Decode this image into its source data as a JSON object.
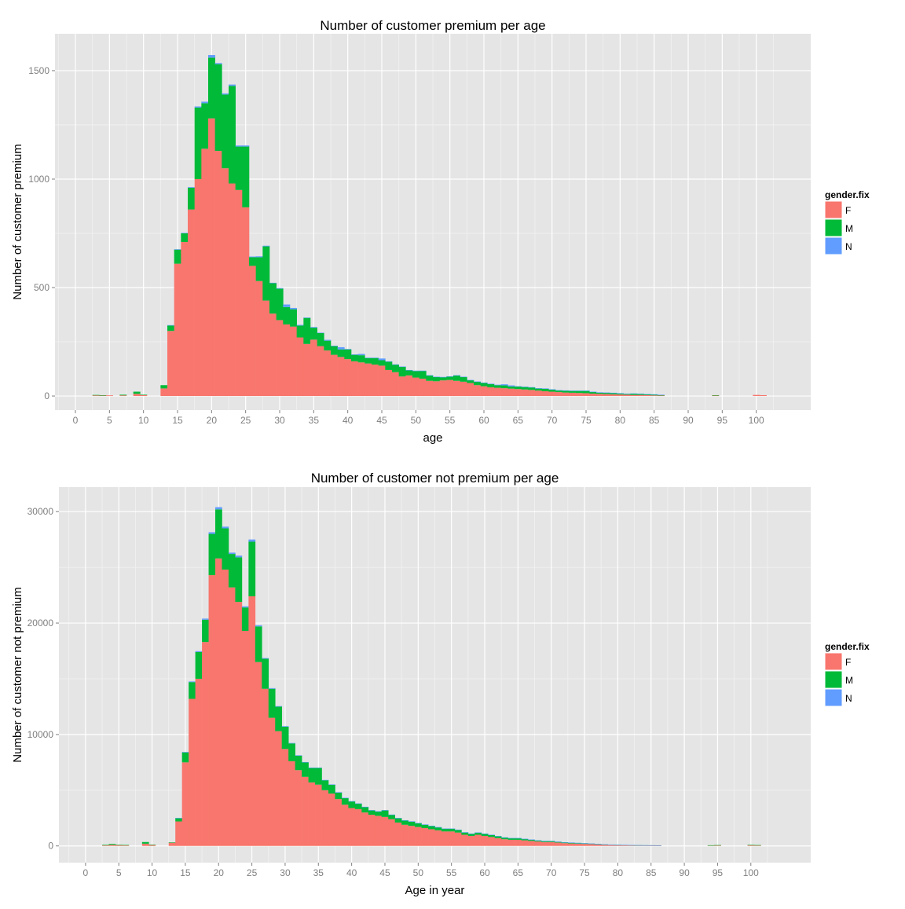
{
  "chart_data": [
    {
      "type": "bar",
      "stacked": true,
      "title": "Number of customer premium per age",
      "xlabel": "age",
      "ylabel": "Number of customer premium",
      "xlim": [
        -3,
        108
      ],
      "ylim": [
        -65,
        1670
      ],
      "xticks": [
        0,
        5,
        10,
        15,
        20,
        25,
        30,
        35,
        40,
        45,
        50,
        55,
        60,
        65,
        70,
        75,
        80,
        85,
        90,
        95,
        100
      ],
      "xtick_labels": [
        "0",
        "5",
        "10",
        "15",
        "20",
        "25",
        "30",
        "35",
        "40",
        "45",
        "50",
        "55",
        "60",
        "65",
        "70",
        "75",
        "80",
        "85",
        "90",
        "95",
        "100"
      ],
      "yticks": [
        0,
        500,
        1000,
        1500
      ],
      "ytick_labels": [
        "0",
        "500",
        "1000",
        "1500"
      ],
      "grid": true,
      "legend": {
        "title": "gender.fix",
        "position": "right",
        "entries": [
          "F",
          "M",
          "N"
        ]
      },
      "series_colors": {
        "F": "#F8766D",
        "M": "#00BA38",
        "N": "#619CFF"
      },
      "x": [
        3,
        4,
        5,
        7,
        9,
        10,
        13,
        14,
        15,
        16,
        17,
        18,
        19,
        20,
        21,
        22,
        23,
        24,
        25,
        26,
        27,
        28,
        29,
        30,
        31,
        32,
        33,
        34,
        35,
        36,
        37,
        38,
        39,
        40,
        41,
        42,
        43,
        44,
        45,
        46,
        47,
        48,
        49,
        50,
        51,
        52,
        53,
        54,
        55,
        56,
        57,
        58,
        59,
        60,
        61,
        62,
        63,
        64,
        65,
        66,
        67,
        68,
        69,
        70,
        71,
        72,
        73,
        74,
        75,
        76,
        77,
        78,
        79,
        80,
        81,
        82,
        83,
        84,
        85,
        86,
        94,
        100,
        101
      ],
      "series": [
        {
          "name": "F",
          "values": [
            3,
            3,
            3,
            3,
            10,
            5,
            35,
            300,
            610,
            710,
            860,
            1000,
            1140,
            1280,
            1130,
            1050,
            980,
            950,
            870,
            600,
            530,
            440,
            380,
            350,
            330,
            320,
            270,
            240,
            260,
            230,
            210,
            190,
            180,
            170,
            160,
            155,
            150,
            145,
            140,
            120,
            110,
            90,
            95,
            85,
            80,
            70,
            68,
            72,
            74,
            70,
            66,
            60,
            50,
            45,
            40,
            38,
            36,
            34,
            32,
            30,
            28,
            25,
            22,
            20,
            18,
            16,
            15,
            14,
            13,
            11,
            10,
            9,
            8,
            7,
            6,
            5,
            5,
            4,
            3,
            2,
            2,
            5,
            4
          ]
        },
        {
          "name": "M",
          "values": [
            2,
            1,
            0,
            3,
            10,
            1,
            15,
            25,
            65,
            40,
            100,
            330,
            210,
            280,
            400,
            340,
            450,
            200,
            280,
            40,
            110,
            250,
            140,
            145,
            80,
            80,
            55,
            120,
            55,
            60,
            45,
            40,
            35,
            45,
            30,
            33,
            25,
            30,
            25,
            38,
            35,
            45,
            24,
            30,
            36,
            25,
            20,
            15,
            16,
            25,
            22,
            13,
            16,
            16,
            15,
            12,
            13,
            10,
            12,
            12,
            12,
            10,
            12,
            10,
            8,
            9,
            9,
            10,
            11,
            8,
            6,
            6,
            6,
            5,
            4,
            6,
            5,
            4,
            4,
            3,
            2,
            0,
            0
          ]
        },
        {
          "name": "N",
          "values": [
            0,
            0,
            0,
            0,
            0,
            0,
            0,
            2,
            2,
            2,
            3,
            5,
            7,
            12,
            5,
            5,
            6,
            5,
            5,
            3,
            4,
            3,
            2,
            3,
            12,
            6,
            3,
            2,
            3,
            2,
            4,
            2,
            10,
            2,
            2,
            6,
            2,
            2,
            8,
            2,
            1,
            1,
            1,
            2,
            1,
            1,
            1,
            1,
            1,
            1,
            1,
            1,
            1,
            1,
            2,
            2,
            5,
            5,
            1,
            1,
            1,
            1,
            1,
            1,
            1,
            1,
            1,
            1,
            1,
            1,
            1,
            1,
            1,
            1,
            1,
            1,
            1,
            1,
            1,
            1,
            0,
            0,
            0
          ]
        }
      ]
    },
    {
      "type": "bar",
      "stacked": true,
      "title": "Number of customer not premium per age",
      "xlabel": "Age in year",
      "ylabel": "Number of customer not premium",
      "xlim": [
        -4,
        109
      ],
      "ylim": [
        -1500,
        32200
      ],
      "xticks": [
        0,
        5,
        10,
        15,
        20,
        25,
        30,
        35,
        40,
        45,
        50,
        55,
        60,
        65,
        70,
        75,
        80,
        85,
        90,
        95,
        100
      ],
      "xtick_labels": [
        "0",
        "5",
        "10",
        "15",
        "20",
        "25",
        "30",
        "35",
        "40",
        "45",
        "50",
        "55",
        "60",
        "65",
        "70",
        "75",
        "80",
        "85",
        "90",
        "95",
        "100"
      ],
      "yticks": [
        0,
        10000,
        20000,
        30000
      ],
      "ytick_labels": [
        "0",
        "10000",
        "20000",
        "30000"
      ],
      "grid": true,
      "legend": {
        "title": "gender.fix",
        "position": "right",
        "entries": [
          "F",
          "M",
          "N"
        ]
      },
      "series_colors": {
        "F": "#F8766D",
        "M": "#00BA38",
        "N": "#619CFF"
      },
      "x": [
        3,
        4,
        5,
        6,
        9,
        10,
        13,
        14,
        15,
        16,
        17,
        18,
        19,
        20,
        21,
        22,
        23,
        24,
        25,
        26,
        27,
        28,
        29,
        30,
        31,
        32,
        33,
        34,
        35,
        36,
        37,
        38,
        39,
        40,
        41,
        42,
        43,
        44,
        45,
        46,
        47,
        48,
        49,
        50,
        51,
        52,
        53,
        54,
        55,
        56,
        57,
        58,
        59,
        60,
        61,
        62,
        63,
        64,
        65,
        66,
        67,
        68,
        69,
        70,
        71,
        72,
        73,
        74,
        75,
        76,
        77,
        78,
        79,
        80,
        81,
        82,
        83,
        84,
        85,
        86,
        94,
        95,
        100,
        101
      ],
      "series": [
        {
          "name": "F",
          "values": [
            50,
            100,
            80,
            60,
            200,
            100,
            300,
            2200,
            7500,
            13200,
            15000,
            18300,
            24300,
            25800,
            24800,
            23200,
            21900,
            19300,
            22400,
            16500,
            14100,
            11500,
            10300,
            8700,
            7600,
            6800,
            6200,
            5700,
            5500,
            5000,
            4700,
            4200,
            3700,
            3400,
            3300,
            3000,
            2800,
            2700,
            2600,
            2400,
            2100,
            1900,
            1800,
            1700,
            1600,
            1500,
            1400,
            1300,
            1300,
            1200,
            1000,
            900,
            1000,
            900,
            800,
            700,
            600,
            550,
            550,
            500,
            450,
            400,
            350,
            350,
            300,
            250,
            220,
            200,
            180,
            160,
            130,
            100,
            80,
            70,
            60,
            50,
            45,
            40,
            35,
            30,
            40,
            60,
            80,
            60
          ]
        },
        {
          "name": "M",
          "values": [
            50,
            80,
            30,
            30,
            150,
            20,
            20,
            300,
            900,
            1500,
            2400,
            2000,
            3700,
            4400,
            3700,
            3000,
            4000,
            2100,
            4900,
            3200,
            2700,
            2600,
            2200,
            2000,
            1600,
            1300,
            1300,
            1300,
            1500,
            900,
            800,
            600,
            600,
            600,
            500,
            500,
            400,
            400,
            600,
            400,
            400,
            400,
            400,
            350,
            320,
            300,
            280,
            250,
            250,
            250,
            220,
            200,
            200,
            200,
            200,
            180,
            160,
            150,
            150,
            130,
            120,
            100,
            100,
            100,
            80,
            80,
            80,
            70,
            60,
            50,
            50,
            40,
            40,
            30,
            30,
            30,
            25,
            20,
            20,
            20,
            20,
            20,
            20,
            20
          ]
        },
        {
          "name": "N",
          "values": [
            0,
            0,
            0,
            0,
            0,
            0,
            0,
            10,
            30,
            60,
            80,
            100,
            150,
            200,
            150,
            120,
            150,
            100,
            200,
            100,
            60,
            60,
            50,
            50,
            40,
            40,
            30,
            30,
            30,
            20,
            20,
            20,
            20,
            20,
            15,
            15,
            15,
            15,
            15,
            15,
            10,
            10,
            10,
            10,
            10,
            10,
            10,
            10,
            10,
            10,
            10,
            10,
            10,
            10,
            10,
            10,
            10,
            10,
            10,
            10,
            5,
            5,
            5,
            5,
            5,
            5,
            5,
            5,
            5,
            5,
            5,
            5,
            5,
            5,
            5,
            5,
            5,
            5,
            5,
            5,
            0,
            0,
            0,
            0
          ]
        }
      ]
    }
  ]
}
